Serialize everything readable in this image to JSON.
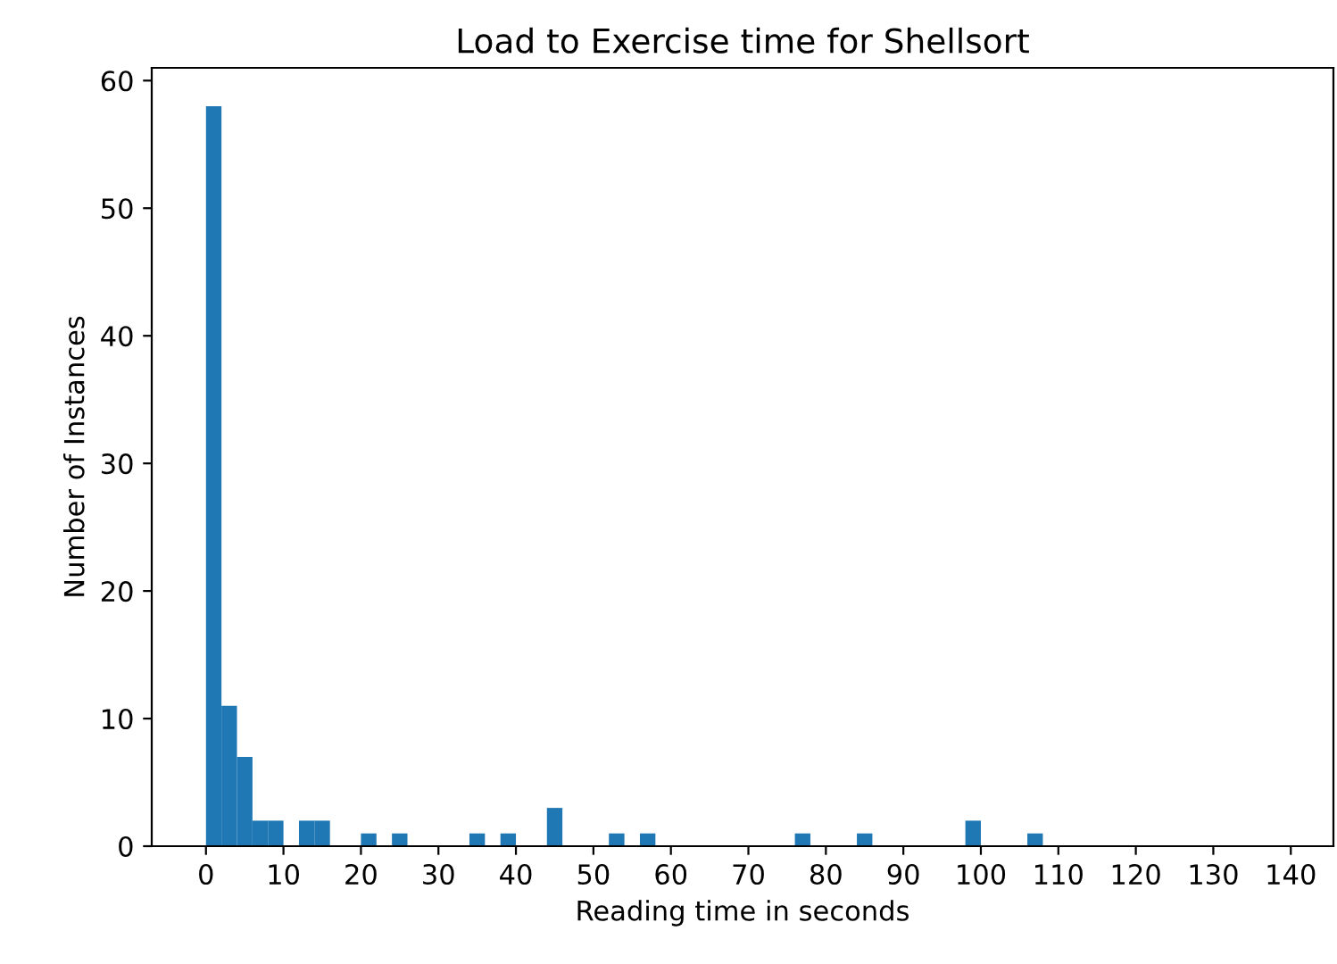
{
  "chart_data": {
    "type": "histogram",
    "title": "Load to Exercise time for Shellsort",
    "xlabel": "Reading time in seconds",
    "ylabel": "Number of Instances",
    "bins": [
      0,
      2,
      4,
      6,
      8,
      10,
      12,
      14,
      16,
      18,
      20,
      22,
      24,
      26,
      28,
      30,
      32,
      34,
      36,
      38,
      40,
      42,
      44,
      46,
      48,
      50,
      52,
      54,
      56,
      58,
      60,
      62,
      64,
      66,
      68,
      70,
      72,
      74,
      76,
      78,
      80,
      82,
      84,
      86,
      88,
      90,
      92,
      94,
      96,
      98,
      100,
      102,
      104,
      106,
      108
    ],
    "values": [
      58,
      11,
      7,
      2,
      2,
      0,
      2,
      2,
      0,
      0,
      1,
      0,
      1,
      0,
      0,
      0,
      0,
      1,
      0,
      1,
      0,
      0,
      3,
      0,
      0,
      0,
      1,
      0,
      1,
      0,
      0,
      0,
      0,
      0,
      0,
      0,
      0,
      0,
      1,
      0,
      0,
      0,
      1,
      0,
      0,
      0,
      0,
      0,
      0,
      2,
      0,
      0,
      0,
      1
    ],
    "color": "#1f77b4",
    "xlim": [
      -7,
      145.5
    ],
    "xticks": [
      0,
      10,
      20,
      30,
      40,
      50,
      60,
      70,
      80,
      90,
      100,
      110,
      120,
      130,
      140
    ],
    "ylim": [
      0,
      61
    ],
    "yticks": [
      0,
      10,
      20,
      30,
      40,
      50,
      60
    ],
    "grid": false
  }
}
